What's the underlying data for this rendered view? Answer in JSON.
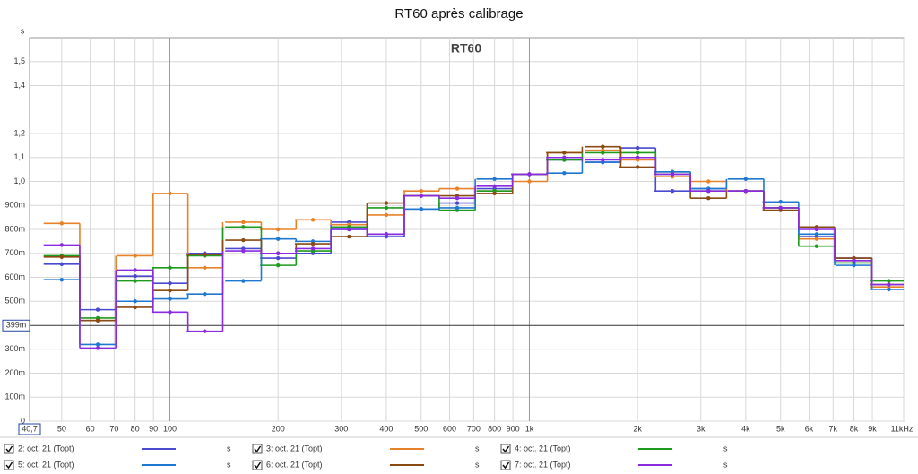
{
  "chart_data": {
    "type": "step",
    "title": "RT60 après calibrage",
    "subtitle": "RT60",
    "y_unit": "s",
    "log_x": true,
    "grid": true,
    "xlim": [
      40.7,
      11000
    ],
    "ylim": [
      0,
      1.6
    ],
    "xticks": [
      {
        "value": 40.7,
        "label": "40,7"
      },
      50,
      60,
      70,
      80,
      90,
      100,
      200,
      300,
      400,
      500,
      600,
      700,
      800,
      900,
      {
        "value": 1000,
        "label": "1k"
      },
      {
        "value": 2000,
        "label": "2k"
      },
      {
        "value": 3000,
        "label": "3k"
      },
      {
        "value": 4000,
        "label": "4k"
      },
      {
        "value": 5000,
        "label": "5k"
      },
      {
        "value": 6000,
        "label": "6k"
      },
      {
        "value": 7000,
        "label": "7k"
      },
      {
        "value": 8000,
        "label": "8k"
      },
      {
        "value": 9000,
        "label": "9k"
      },
      {
        "value": 11000,
        "label": "11kHz"
      }
    ],
    "yticks": [
      0,
      {
        "value": 0.1,
        "label": "100m"
      },
      {
        "value": 0.2,
        "label": "200m"
      },
      {
        "value": 0.3,
        "label": "300m"
      },
      {
        "value": 0.5,
        "label": "500m"
      },
      {
        "value": 0.6,
        "label": "600m"
      },
      {
        "value": 0.7,
        "label": "700m"
      },
      {
        "value": 0.8,
        "label": "800m"
      },
      {
        "value": 0.9,
        "label": "900m"
      },
      {
        "value": 1.0,
        "label": "1,0"
      },
      {
        "value": 1.1,
        "label": "1,1"
      },
      {
        "value": 1.2,
        "label": "1,2"
      },
      {
        "value": 1.4,
        "label": "1,4"
      },
      {
        "value": 1.5,
        "label": "1,5"
      }
    ],
    "cursor": {
      "value": 0.399,
      "label": "399m"
    },
    "x": [
      50,
      63,
      80,
      100,
      125,
      160,
      200,
      250,
      315,
      400,
      500,
      630,
      800,
      1000,
      1250,
      1600,
      2000,
      2500,
      3150,
      4000,
      5000,
      6300,
      8000,
      10000
    ],
    "series": [
      {
        "name": "2: oct. 21 (Topt)",
        "color": "#4a4ad0",
        "values": [
          0.655,
          0.465,
          0.605,
          0.575,
          0.7,
          0.72,
          0.68,
          0.7,
          0.83,
          0.77,
          0.885,
          0.91,
          0.97,
          1.03,
          1.09,
          1.08,
          1.14,
          0.96,
          0.97,
          0.96,
          0.89,
          0.77,
          0.68,
          0.55
        ]
      },
      {
        "name": "3: oct. 21 (Topt)",
        "color": "#e8822a",
        "values": [
          0.825,
          0.42,
          0.69,
          0.95,
          0.64,
          0.83,
          0.8,
          0.84,
          0.82,
          0.86,
          0.96,
          0.97,
          0.96,
          1.0,
          1.12,
          1.13,
          1.09,
          1.02,
          1.0,
          0.96,
          0.89,
          0.76,
          0.67,
          0.56
        ]
      },
      {
        "name": "4: oct. 21 (Topt)",
        "color": "#1e9a1e",
        "values": [
          0.69,
          0.43,
          0.585,
          0.64,
          0.69,
          0.81,
          0.65,
          0.71,
          0.81,
          0.89,
          0.94,
          0.88,
          0.96,
          1.03,
          1.09,
          1.12,
          1.12,
          1.04,
          0.96,
          0.96,
          0.89,
          0.73,
          0.66,
          0.585
        ]
      },
      {
        "name": "5: oct. 21 (Topt)",
        "color": "#1f78d0",
        "values": [
          0.59,
          0.32,
          0.5,
          0.51,
          0.53,
          0.585,
          0.76,
          0.75,
          0.8,
          0.78,
          0.885,
          0.89,
          1.01,
          1.03,
          1.035,
          1.08,
          1.1,
          1.04,
          0.97,
          1.01,
          0.915,
          0.78,
          0.65,
          0.55
        ]
      },
      {
        "name": "6: oct. 21 (Topt)",
        "color": "#8a4a14",
        "values": [
          0.685,
          0.42,
          0.475,
          0.545,
          0.695,
          0.755,
          0.7,
          0.74,
          0.77,
          0.91,
          0.94,
          0.94,
          0.95,
          1.03,
          1.12,
          1.145,
          1.06,
          1.03,
          0.93,
          0.96,
          0.88,
          0.81,
          0.68,
          0.57
        ]
      },
      {
        "name": "7: oct. 21 (Topt)",
        "color": "#8a2be2",
        "values": [
          0.735,
          0.305,
          0.63,
          0.455,
          0.375,
          0.71,
          0.7,
          0.72,
          0.8,
          0.78,
          0.94,
          0.93,
          0.98,
          1.03,
          1.1,
          1.09,
          1.1,
          1.03,
          0.96,
          0.96,
          0.89,
          0.8,
          0.67,
          0.57
        ]
      }
    ]
  }
}
